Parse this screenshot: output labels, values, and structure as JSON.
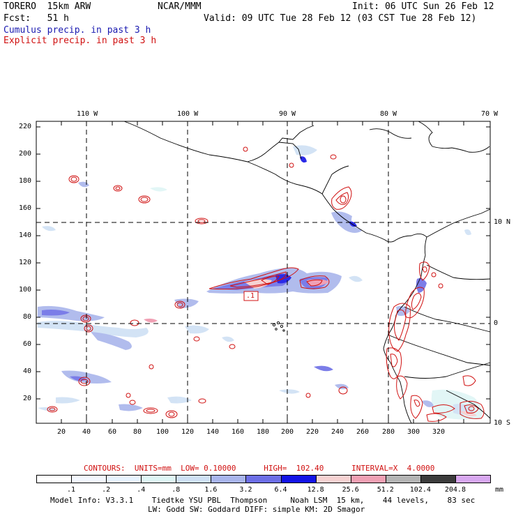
{
  "header": {
    "model": "TORERO  15km ARW",
    "org": "NCAR/MMM",
    "init": "Init: 06 UTC Sun 26 Feb 12",
    "fcst": "Fcst:   51 h",
    "valid": "Valid: 09 UTC Tue 28 Feb 12 (03 CST Tue 28 Feb 12)",
    "line1": "Cumulus precip. in past 3 h",
    "line2": "Explicit precip. in past 3 h"
  },
  "axes": {
    "lon_labels": [
      "110 W",
      "100 W",
      "90 W",
      "80 W",
      "70 W"
    ],
    "lat_labels": [
      "10 N",
      "0",
      "10 S"
    ],
    "x_ticks": [
      "20",
      "40",
      "60",
      "80",
      "100",
      "120",
      "140",
      "160",
      "180",
      "200",
      "220",
      "240",
      "260",
      "280",
      "300",
      "320"
    ],
    "y_ticks": [
      "220",
      "200",
      "180",
      "160",
      "140",
      "120",
      "100",
      "80",
      "60",
      "40",
      "20"
    ]
  },
  "annotation": ".1",
  "contour_info": {
    "text": "CONTOURS:  UNITS=mm  LOW= 0.10000      HIGH=  102.40      INTERVAL=X  4.0000"
  },
  "colorbar": {
    "labels": [
      ".1",
      ".2",
      ".4",
      ".8",
      "1.6",
      "3.2",
      "6.4",
      "12.8",
      "25.6",
      "51.2",
      "102.4",
      "204.8"
    ],
    "unit": "mm",
    "colors": [
      "#ffffff",
      "#f4f8ff",
      "#e8f4ff",
      "#dff6f6",
      "#cfe1f5",
      "#a9b5ec",
      "#6d6fe6",
      "#1414e6",
      "#f6d2d2",
      "#f0a0b4",
      "#b4b4b4",
      "#3c3c3c",
      "#d8a8f0"
    ]
  },
  "footer": {
    "line1": "Model Info: V3.3.1    Tiedtke YSU PBL  Thompson     Noah LSM  15 km,    44 levels,    83 sec",
    "line2": "LW: Godd SW: Goddard DIFF: simple KM: 2D Smagor"
  }
}
